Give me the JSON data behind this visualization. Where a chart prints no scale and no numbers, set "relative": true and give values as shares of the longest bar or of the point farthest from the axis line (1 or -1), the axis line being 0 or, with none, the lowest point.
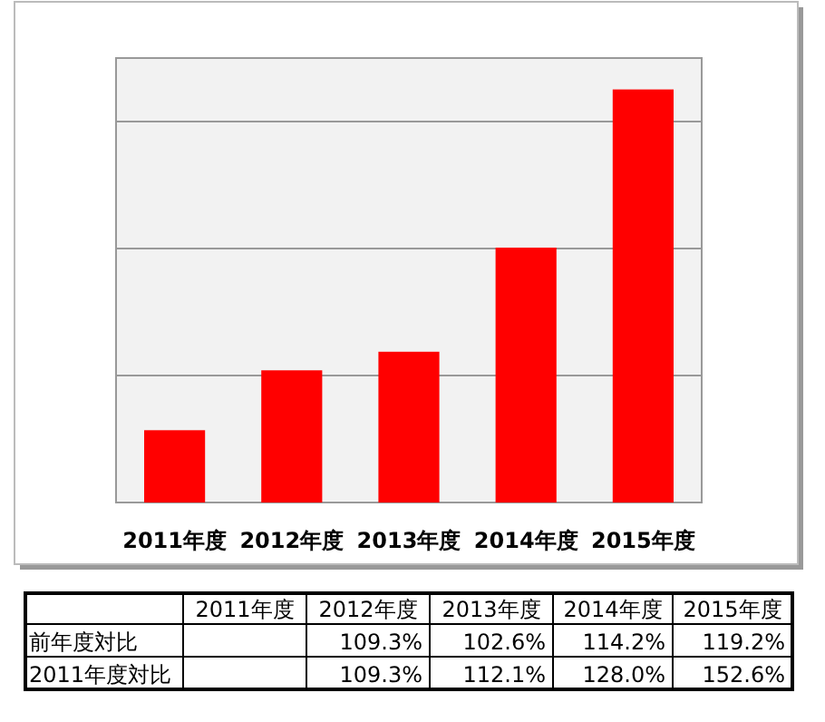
{
  "chart_data": {
    "type": "bar",
    "relative": true,
    "categories": [
      "2011年度",
      "2012年度",
      "2013年度",
      "2014年度",
      "2015年度"
    ],
    "values": [
      0.175,
      0.32,
      0.365,
      0.617,
      1
    ],
    "color": "#ff0000",
    "grid": true,
    "annotations": [
      "2011年度",
      "2012年度",
      "2013年度",
      "2014年度",
      "2015年度",
      "前年度対比",
      "109.3%",
      "102.6%",
      "114.2%",
      "119.2%",
      "2011年度対比",
      "109.3%",
      "112.1%",
      "128.0%",
      "152.6%"
    ]
  }
}
